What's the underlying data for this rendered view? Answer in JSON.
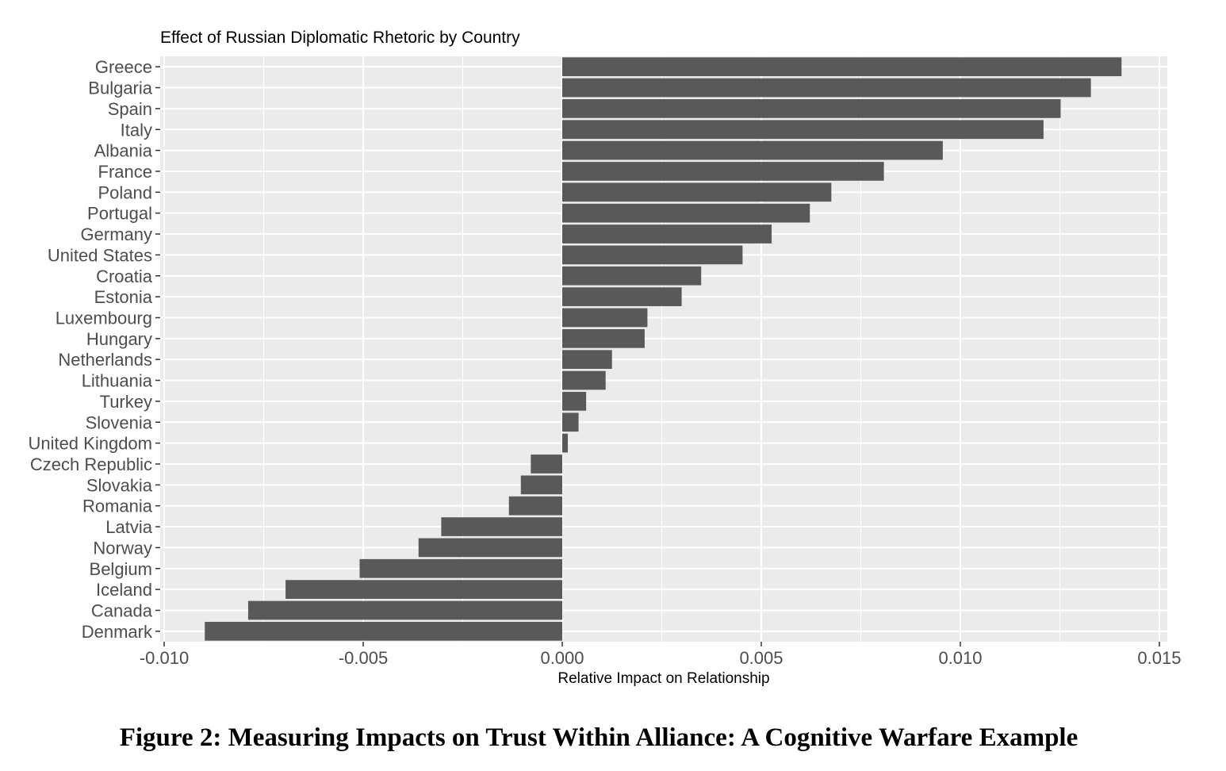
{
  "chart_data": {
    "type": "bar",
    "orientation": "horizontal",
    "title": "Effect of Russian Diplomatic Rhetoric by Country",
    "xlabel": "Relative Impact on Relationship",
    "ylabel": "",
    "xlim": [
      -0.0101,
      0.0152
    ],
    "xticks": [
      -0.01,
      -0.005,
      0.0,
      0.005,
      0.01,
      0.015
    ],
    "xtick_labels": [
      "-0.010",
      "-0.005",
      "0.000",
      "0.005",
      "0.010",
      "0.015"
    ],
    "grid": true,
    "legend": "none",
    "categories": [
      "Greece",
      "Bulgaria",
      "Spain",
      "Italy",
      "Albania",
      "France",
      "Poland",
      "Portugal",
      "Germany",
      "United States",
      "Croatia",
      "Estonia",
      "Luxembourg",
      "Hungary",
      "Netherlands",
      "Lithuania",
      "Turkey",
      "Slovenia",
      "United Kingdom",
      "Czech Republic",
      "Slovakia",
      "Romania",
      "Latvia",
      "Norway",
      "Belgium",
      "Iceland",
      "Canada",
      "Denmark"
    ],
    "values": [
      0.01405,
      0.01328,
      0.01252,
      0.01209,
      0.00956,
      0.00808,
      0.00676,
      0.00622,
      0.00526,
      0.00453,
      0.00349,
      0.003,
      0.00214,
      0.00207,
      0.00125,
      0.00109,
      0.0006,
      0.00041,
      0.00014,
      -0.00079,
      -0.00104,
      -0.00134,
      -0.00304,
      -0.00361,
      -0.00509,
      -0.00695,
      -0.00789,
      -0.00898
    ],
    "colors": {
      "bar": "#595959",
      "panel": "#ebebeb",
      "grid": "#ffffff",
      "text": "#4d4d4d",
      "title": "#000000"
    }
  },
  "caption": "Figure 2:  Measuring Impacts on Trust Within Alliance: A Cognitive Warfare Example"
}
